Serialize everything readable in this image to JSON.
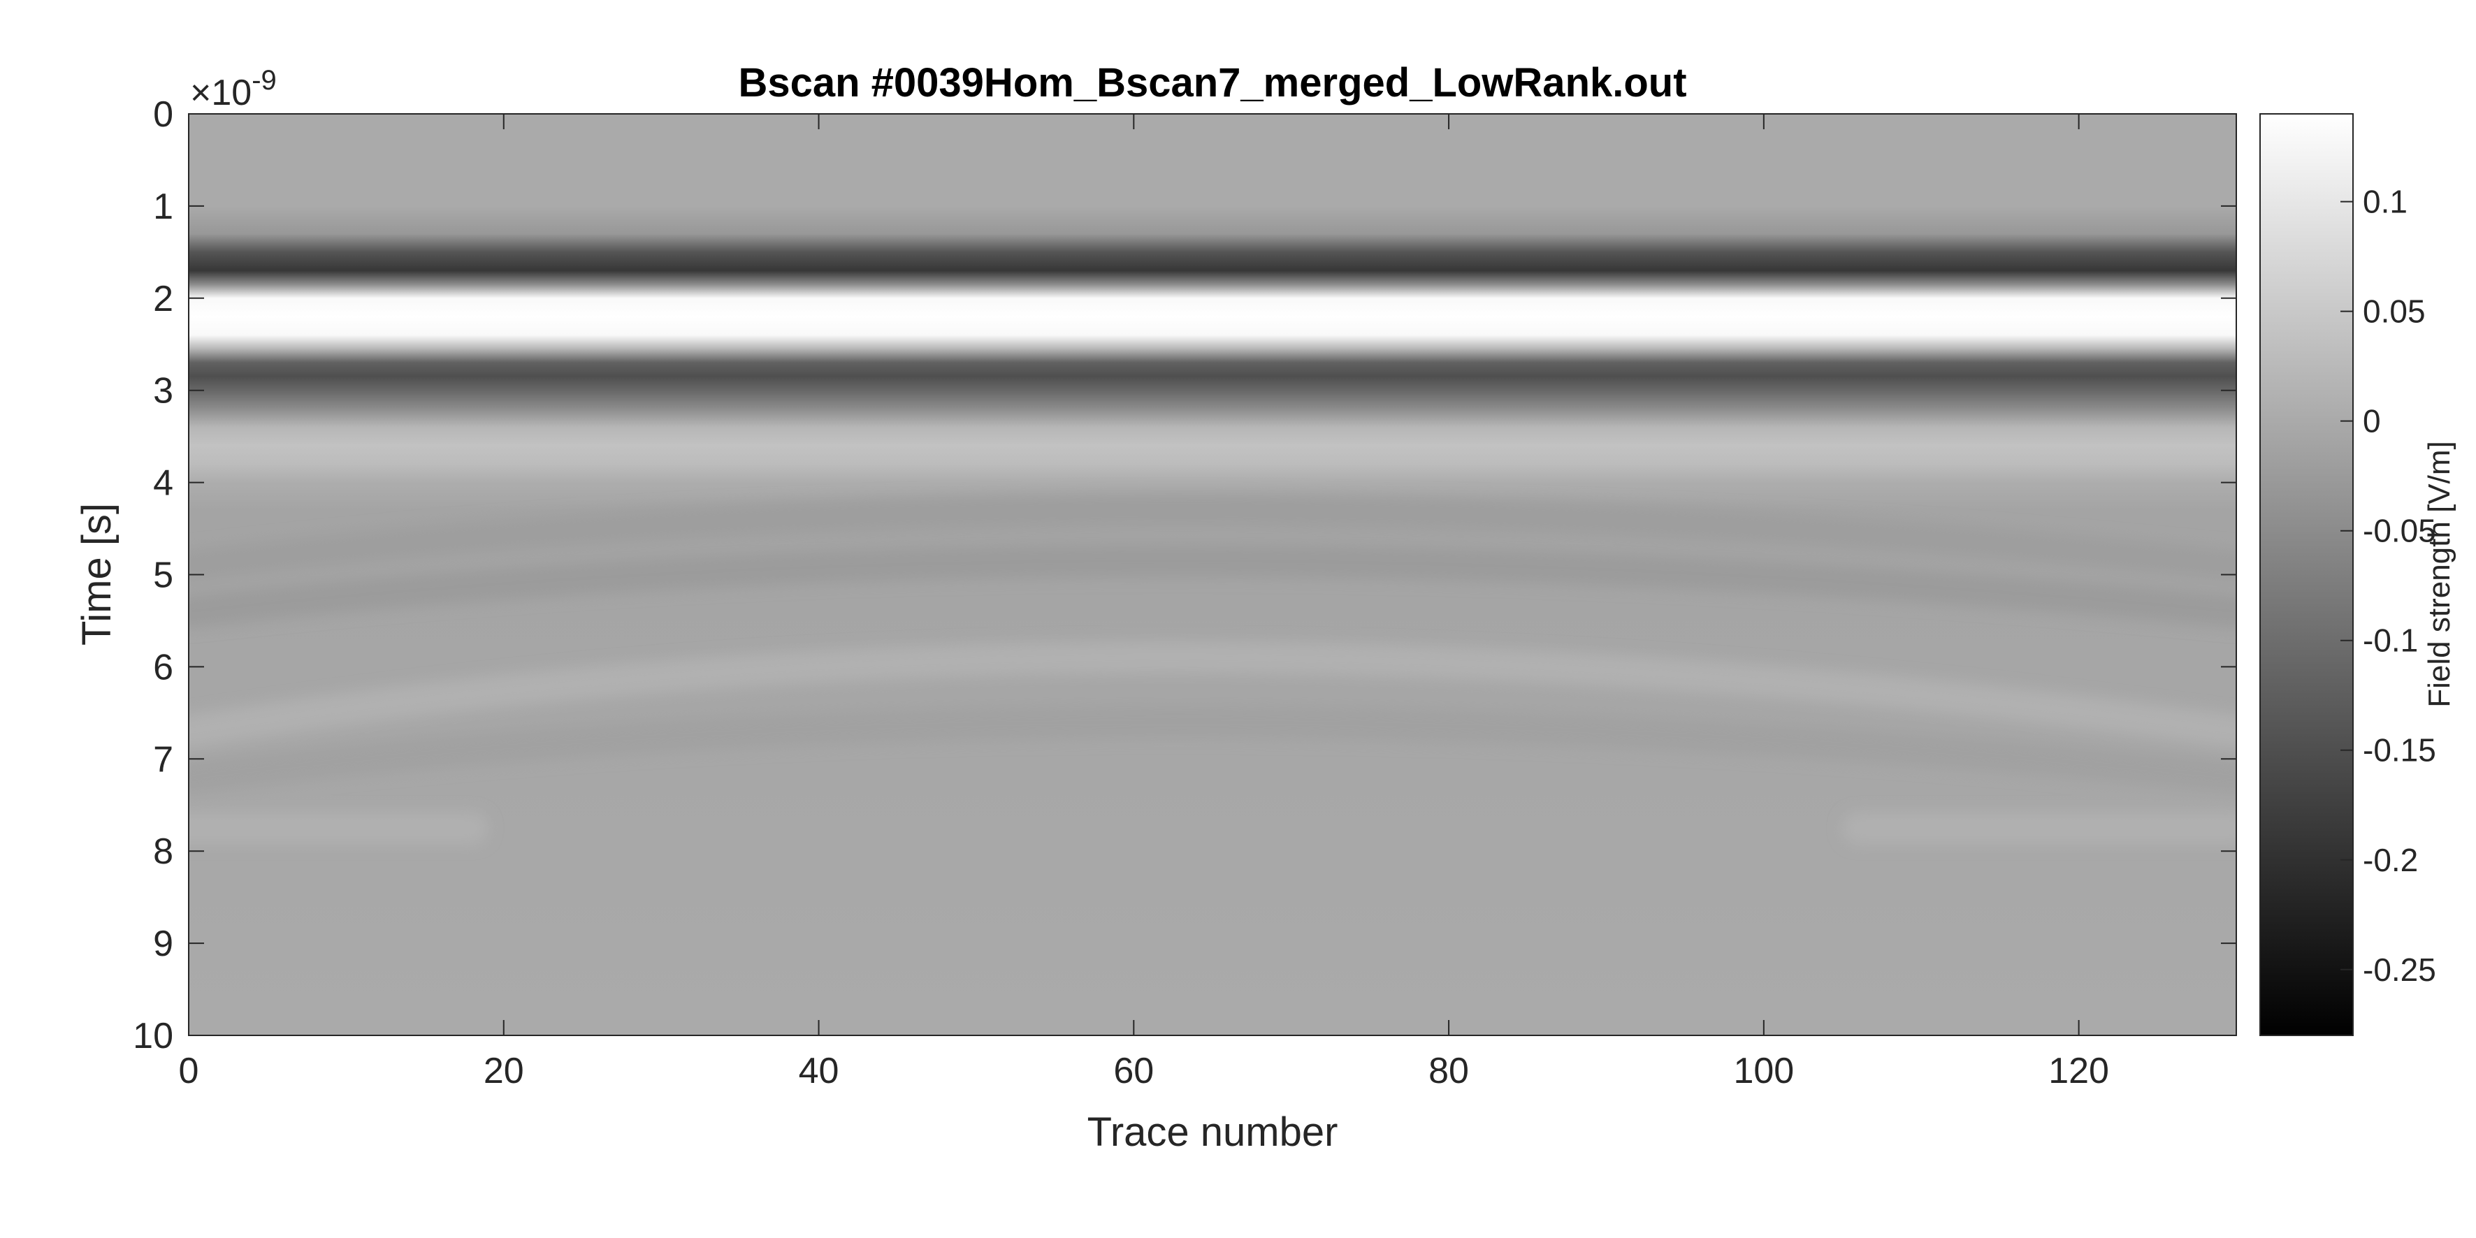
{
  "chart_data": {
    "type": "heatmap",
    "title": "Bscan #0039Hom_Bscan7_merged_LowRank.out",
    "xlabel": "Trace number",
    "ylabel": "Time [s]",
    "y_exponent_label": "×10",
    "y_exponent_power": "-9",
    "xlim": [
      0,
      130
    ],
    "ylim": [
      0,
      10
    ],
    "y_scale_factor": 1e-09,
    "y_reversed": true,
    "x_ticks": [
      "0",
      "20",
      "40",
      "60",
      "80",
      "100",
      "120"
    ],
    "y_ticks": [
      "0",
      "1",
      "2",
      "3",
      "4",
      "5",
      "6",
      "7",
      "8",
      "9",
      "10"
    ],
    "grid": false,
    "colormap": "gray",
    "colorbar": {
      "label": "Field strength [V/m]",
      "clim": [
        -0.28,
        0.14
      ],
      "ticks": [
        "0.1",
        "0.05",
        "0",
        "-0.05",
        "-0.1",
        "-0.15",
        "-0.2",
        "-0.25"
      ],
      "tick_values": [
        0.1,
        0.05,
        0,
        -0.05,
        -0.1,
        -0.15,
        -0.2,
        -0.25
      ]
    },
    "profile": {
      "description": "laterally uniform direct wave with weak curved reflections",
      "time_ns": [
        0,
        1.0,
        1.3,
        1.5,
        1.7,
        1.85,
        2.0,
        2.2,
        2.4,
        2.55,
        2.7,
        2.85,
        3.0,
        3.2,
        3.4,
        3.6,
        3.8,
        4.0,
        4.3,
        10
      ],
      "field": [
        0,
        0,
        -0.03,
        -0.14,
        -0.19,
        -0.05,
        0.13,
        0.14,
        0.13,
        0.02,
        -0.12,
        -0.15,
        -0.11,
        -0.05,
        0.02,
        0.04,
        0.03,
        0.005,
        -0.01,
        0
      ]
    },
    "reflections": [
      {
        "apex_trace": 60,
        "apex_time_ns": 4.3,
        "flank_time_ns": 4.9,
        "field": -0.02
      },
      {
        "apex_trace": 60,
        "apex_time_ns": 4.85,
        "flank_time_ns": 5.4,
        "field": -0.025
      },
      {
        "apex_trace": 60,
        "apex_time_ns": 5.9,
        "flank_time_ns": 6.7,
        "field": 0.012
      },
      {
        "apex_trace": 60,
        "apex_time_ns": 6.6,
        "flank_time_ns": 7.2,
        "field": -0.015
      },
      {
        "apex_trace": 6,
        "apex_time_ns": 7.75,
        "flank_time_ns": 7.75,
        "field": 0.01
      },
      {
        "apex_trace": 118,
        "apex_time_ns": 7.75,
        "flank_time_ns": 7.75,
        "field": 0.01
      }
    ]
  }
}
